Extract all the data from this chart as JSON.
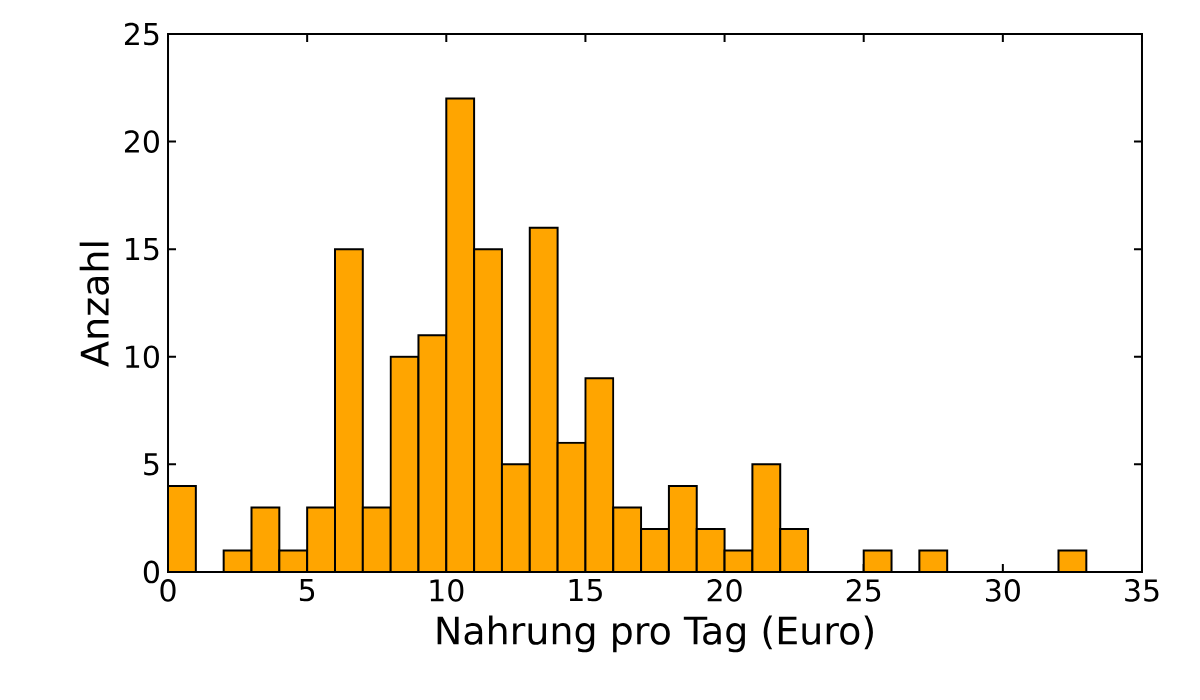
{
  "chart_data": {
    "type": "histogram",
    "xlabel": "Nahrung pro Tag (Euro)",
    "ylabel": "Anzahl",
    "bins": [
      0,
      1,
      2,
      3,
      4,
      5,
      6,
      7,
      8,
      9,
      10,
      11,
      12,
      13,
      14,
      15,
      16,
      17,
      18,
      19,
      20,
      21,
      22,
      23,
      24,
      25,
      26,
      27,
      28,
      29,
      30,
      31,
      32,
      33
    ],
    "values": [
      4,
      0,
      1,
      3,
      1,
      3,
      15,
      3,
      10,
      11,
      22,
      15,
      5,
      16,
      6,
      9,
      3,
      2,
      4,
      2,
      1,
      5,
      2,
      0,
      0,
      1,
      0,
      1,
      0,
      0,
      0,
      0,
      1
    ],
    "color": "#ffa500",
    "xlim": [
      0,
      35
    ],
    "xticks": [
      0,
      5,
      10,
      15,
      20,
      25,
      30,
      35
    ],
    "ylim": [
      0,
      25
    ],
    "yticks": [
      0,
      5,
      10,
      15,
      20,
      25
    ]
  }
}
